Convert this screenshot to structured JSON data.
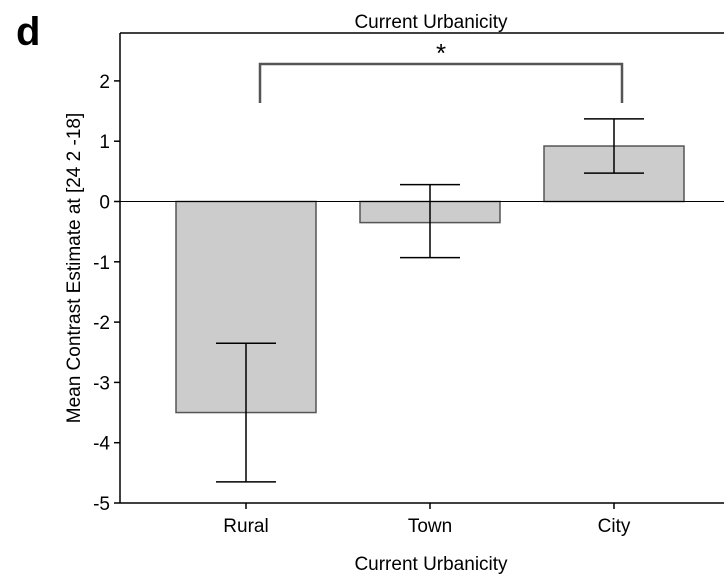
{
  "chart_data": {
    "type": "bar",
    "panel_label": "d",
    "title": "Current Urbanicity",
    "xlabel": "Current Urbanicity",
    "ylabel": "Mean Contrast Estimate at [24 2 -18]",
    "categories": [
      "Rural",
      "Town",
      "City"
    ],
    "values": [
      -3.5,
      -0.35,
      0.92
    ],
    "error_low": [
      -4.65,
      -0.93,
      0.47
    ],
    "error_high": [
      -2.35,
      0.28,
      1.37
    ],
    "ylim": [
      -5,
      2.7
    ],
    "yticks": [
      "-5",
      "-4",
      "-3",
      "-2",
      "-1",
      "0",
      "1",
      "2"
    ],
    "grid": false,
    "legend": "none",
    "significance": {
      "from": "Rural",
      "to": "City",
      "label": "*"
    },
    "colors": {
      "bar_fill": "#cccccc",
      "bar_stroke": "#555555",
      "axis": "#000000"
    }
  }
}
